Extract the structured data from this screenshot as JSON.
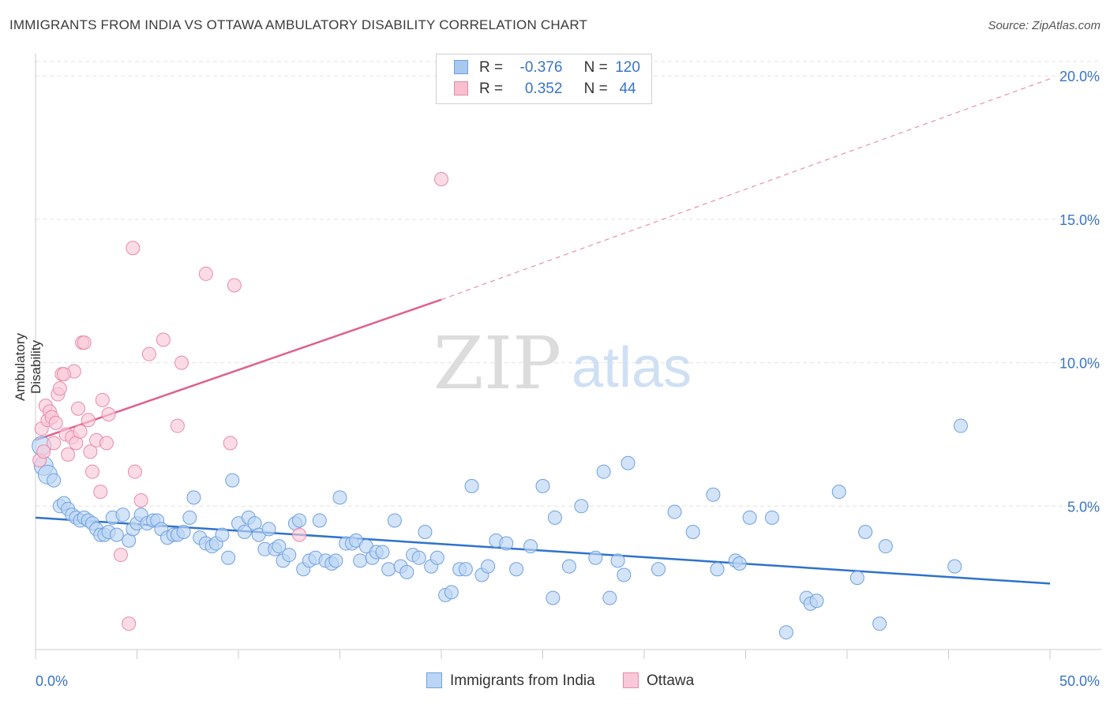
{
  "title": "IMMIGRANTS FROM INDIA VS OTTAWA AMBULATORY DISABILITY CORRELATION CHART",
  "source": "Source: ZipAtlas.com",
  "watermark": {
    "zip": "ZIP",
    "atlas": "atlas"
  },
  "legend_top": {
    "rows": [
      {
        "r_label": "R =",
        "r_value": "-0.376",
        "n_label": "N =",
        "n_value": "120",
        "color": "#a9c8f0",
        "border": "#6fa0e0"
      },
      {
        "r_label": "R =",
        "r_value": "0.352",
        "n_label": "N =",
        "n_value": "44",
        "color": "#f7bfd0",
        "border": "#e88aa8"
      }
    ]
  },
  "legend_bottom": [
    {
      "label": "Immigrants from India",
      "color": "#bcd5f5",
      "border": "#6fa0e0"
    },
    {
      "label": "Ottawa",
      "color": "#f9c9d8",
      "border": "#e88aa8"
    }
  ],
  "chart_data": {
    "type": "scatter",
    "title": "IMMIGRANTS FROM INDIA VS OTTAWA AMBULATORY DISABILITY CORRELATION CHART",
    "xlabel": "",
    "ylabel": "Ambulatory Disability",
    "xlim": [
      0,
      50
    ],
    "ylim": [
      0,
      20.5
    ],
    "x_tick_labels": [
      "0.0%",
      "50.0%"
    ],
    "y_ticks": [
      5,
      10,
      15,
      20
    ],
    "y_tick_labels": [
      "5.0%",
      "10.0%",
      "15.0%",
      "20.0%"
    ],
    "grid": true,
    "legend_position": "top-center",
    "series": [
      {
        "name": "Immigrants from India",
        "color": "#6fa0e0",
        "fill": "#bcd5f5",
        "trend": {
          "x0": 0,
          "y0": 4.6,
          "x1": 50,
          "y1": 2.3,
          "color": "#2f72cc"
        },
        "points": [
          [
            0.3,
            7.1
          ],
          [
            0.4,
            6.4
          ],
          [
            0.6,
            6.1
          ],
          [
            0.9,
            5.9
          ],
          [
            1.2,
            5.0
          ],
          [
            1.4,
            5.1
          ],
          [
            1.6,
            4.9
          ],
          [
            1.8,
            4.7
          ],
          [
            2.0,
            4.6
          ],
          [
            2.2,
            4.5
          ],
          [
            2.4,
            4.6
          ],
          [
            2.6,
            4.5
          ],
          [
            2.8,
            4.4
          ],
          [
            3.0,
            4.2
          ],
          [
            3.2,
            4.0
          ],
          [
            3.4,
            4.0
          ],
          [
            3.6,
            4.1
          ],
          [
            3.8,
            4.6
          ],
          [
            4.0,
            4.0
          ],
          [
            4.3,
            4.7
          ],
          [
            4.6,
            3.8
          ],
          [
            4.8,
            4.2
          ],
          [
            5.0,
            4.4
          ],
          [
            5.2,
            4.7
          ],
          [
            5.5,
            4.4
          ],
          [
            5.8,
            4.5
          ],
          [
            6.0,
            4.5
          ],
          [
            6.2,
            4.2
          ],
          [
            6.5,
            3.9
          ],
          [
            6.8,
            4.0
          ],
          [
            7.0,
            4.0
          ],
          [
            7.3,
            4.1
          ],
          [
            7.6,
            4.6
          ],
          [
            7.8,
            5.3
          ],
          [
            8.1,
            3.9
          ],
          [
            8.4,
            3.7
          ],
          [
            8.7,
            3.6
          ],
          [
            8.9,
            3.7
          ],
          [
            9.2,
            4.0
          ],
          [
            9.5,
            3.2
          ],
          [
            9.7,
            5.9
          ],
          [
            10.0,
            4.4
          ],
          [
            10.3,
            4.1
          ],
          [
            10.5,
            4.6
          ],
          [
            10.8,
            4.4
          ],
          [
            11.0,
            4.0
          ],
          [
            11.3,
            3.5
          ],
          [
            11.5,
            4.2
          ],
          [
            11.8,
            3.5
          ],
          [
            12.0,
            3.6
          ],
          [
            12.2,
            3.1
          ],
          [
            12.5,
            3.3
          ],
          [
            12.8,
            4.4
          ],
          [
            13.0,
            4.5
          ],
          [
            13.2,
            2.8
          ],
          [
            13.5,
            3.1
          ],
          [
            13.8,
            3.2
          ],
          [
            14.0,
            4.5
          ],
          [
            14.3,
            3.1
          ],
          [
            14.6,
            3.0
          ],
          [
            14.8,
            3.1
          ],
          [
            15.0,
            5.3
          ],
          [
            15.3,
            3.7
          ],
          [
            15.6,
            3.7
          ],
          [
            15.8,
            3.8
          ],
          [
            16.0,
            3.1
          ],
          [
            16.3,
            3.6
          ],
          [
            16.6,
            3.2
          ],
          [
            16.8,
            3.4
          ],
          [
            17.1,
            3.4
          ],
          [
            17.4,
            2.8
          ],
          [
            17.7,
            4.5
          ],
          [
            18.0,
            2.9
          ],
          [
            18.3,
            2.7
          ],
          [
            18.6,
            3.3
          ],
          [
            18.9,
            3.2
          ],
          [
            19.2,
            4.1
          ],
          [
            19.5,
            2.9
          ],
          [
            19.8,
            3.2
          ],
          [
            20.2,
            1.9
          ],
          [
            20.5,
            2.0
          ],
          [
            20.9,
            2.8
          ],
          [
            21.2,
            2.8
          ],
          [
            21.5,
            5.7
          ],
          [
            22.0,
            2.6
          ],
          [
            22.3,
            2.9
          ],
          [
            22.7,
            3.8
          ],
          [
            23.2,
            3.7
          ],
          [
            23.7,
            2.8
          ],
          [
            24.4,
            3.6
          ],
          [
            25.0,
            5.7
          ],
          [
            25.5,
            1.8
          ],
          [
            25.6,
            4.6
          ],
          [
            26.3,
            2.9
          ],
          [
            26.9,
            5.0
          ],
          [
            27.6,
            3.2
          ],
          [
            28.0,
            6.2
          ],
          [
            28.3,
            1.8
          ],
          [
            28.7,
            3.1
          ],
          [
            29.0,
            2.6
          ],
          [
            29.2,
            6.5
          ],
          [
            30.7,
            2.8
          ],
          [
            31.5,
            4.8
          ],
          [
            32.4,
            4.1
          ],
          [
            33.4,
            5.4
          ],
          [
            33.6,
            2.8
          ],
          [
            34.5,
            3.1
          ],
          [
            34.7,
            3.0
          ],
          [
            35.2,
            4.6
          ],
          [
            36.3,
            4.6
          ],
          [
            37.0,
            0.6
          ],
          [
            38.0,
            1.8
          ],
          [
            38.2,
            1.6
          ],
          [
            38.5,
            1.7
          ],
          [
            39.6,
            5.5
          ],
          [
            40.5,
            2.5
          ],
          [
            40.9,
            4.1
          ],
          [
            41.6,
            0.9
          ],
          [
            41.9,
            3.6
          ],
          [
            45.6,
            7.8
          ],
          [
            45.3,
            2.9
          ]
        ]
      },
      {
        "name": "Ottawa",
        "color": "#e88aa8",
        "fill": "#f9c9d8",
        "trend": {
          "x0": 0,
          "y0": 7.3,
          "x1": 20,
          "y1": 12.2,
          "ext_x1": 50,
          "ext_y1": 19.9,
          "color": "#e0608a"
        },
        "points": [
          [
            0.2,
            6.6
          ],
          [
            0.3,
            7.7
          ],
          [
            0.5,
            8.5
          ],
          [
            0.6,
            8.0
          ],
          [
            0.7,
            8.3
          ],
          [
            0.8,
            8.1
          ],
          [
            1.0,
            7.9
          ],
          [
            1.1,
            8.9
          ],
          [
            1.2,
            9.1
          ],
          [
            1.3,
            9.6
          ],
          [
            1.5,
            7.5
          ],
          [
            1.6,
            6.8
          ],
          [
            1.8,
            7.4
          ],
          [
            1.9,
            9.7
          ],
          [
            2.0,
            7.2
          ],
          [
            2.1,
            8.4
          ],
          [
            2.3,
            10.7
          ],
          [
            2.4,
            10.7
          ],
          [
            2.6,
            8.0
          ],
          [
            2.7,
            6.9
          ],
          [
            2.8,
            6.2
          ],
          [
            3.0,
            7.3
          ],
          [
            3.2,
            5.5
          ],
          [
            3.3,
            8.7
          ],
          [
            3.5,
            7.2
          ],
          [
            3.6,
            8.2
          ],
          [
            4.2,
            3.3
          ],
          [
            4.6,
            0.9
          ],
          [
            4.8,
            14.0
          ],
          [
            4.9,
            6.2
          ],
          [
            5.2,
            5.2
          ],
          [
            5.6,
            10.3
          ],
          [
            6.3,
            10.8
          ],
          [
            7.0,
            7.8
          ],
          [
            7.2,
            10.0
          ],
          [
            8.4,
            13.1
          ],
          [
            9.6,
            7.2
          ],
          [
            9.8,
            12.7
          ],
          [
            13.0,
            4.0
          ],
          [
            20.0,
            16.4
          ],
          [
            1.4,
            9.6
          ],
          [
            0.9,
            7.2
          ],
          [
            2.2,
            7.6
          ],
          [
            0.4,
            6.9
          ]
        ]
      }
    ]
  }
}
